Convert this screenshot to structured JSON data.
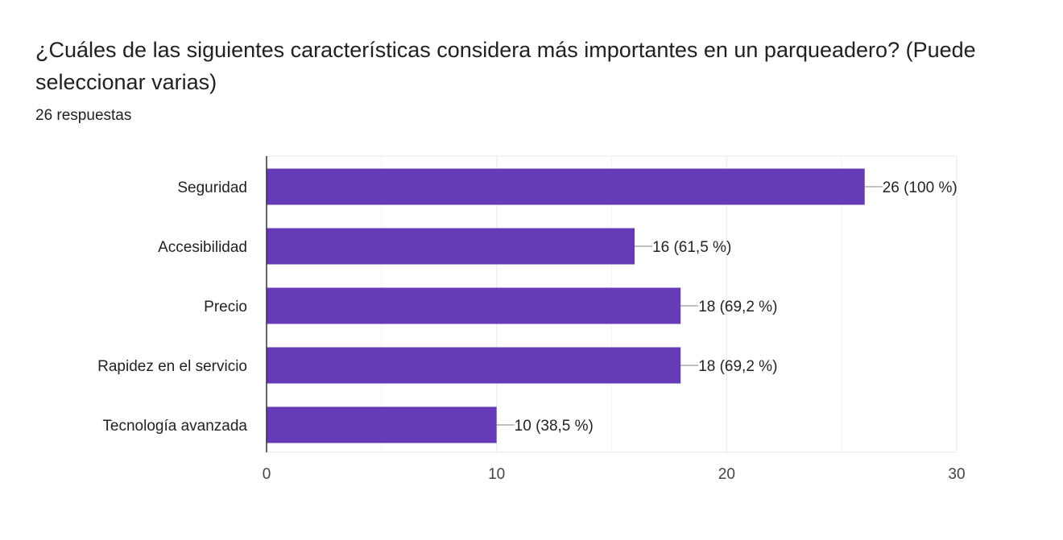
{
  "header": {
    "title": "¿Cuáles de las siguientes características considera más importantes en un parqueadero? (Puede seleccionar varias)",
    "response_count": "26 respuestas"
  },
  "chart_data": {
    "type": "bar",
    "orientation": "horizontal",
    "categories": [
      "Seguridad",
      "Accesibilidad",
      "Precio",
      "Rapidez en el servicio",
      "Tecnología avanzada"
    ],
    "values": [
      26,
      16,
      18,
      18,
      10
    ],
    "data_labels": [
      "26 (100 %)",
      "16 (61,5 %)",
      "18 (69,2 %)",
      "18 (69,2 %)",
      "10 (38,5 %)"
    ],
    "xlim": [
      0,
      30
    ],
    "x_ticks": [
      0,
      10,
      20,
      30
    ],
    "grid": true,
    "legend": "none",
    "bar_color": "#673ab7",
    "grid_color": "#eeeeee",
    "axis_color": "#333333"
  }
}
